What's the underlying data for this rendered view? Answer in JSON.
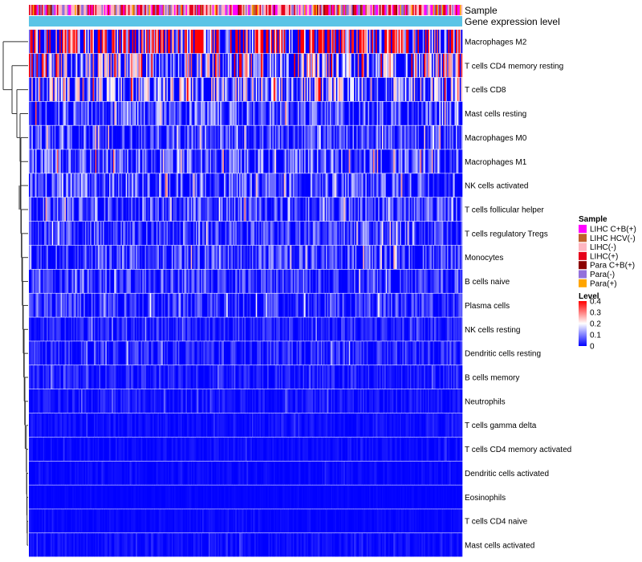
{
  "chart_data": {
    "type": "heatmap",
    "title": "",
    "xlabel": "",
    "ylabel": "",
    "annotation_tracks": [
      "Sample",
      "Gene expression level"
    ],
    "rows": [
      {
        "name": "Macrophages M2",
        "mean": 0.27
      },
      {
        "name": "T cells CD4 memory resting",
        "mean": 0.16
      },
      {
        "name": "T cells CD8",
        "mean": 0.13
      },
      {
        "name": "Mast cells resting",
        "mean": 0.075
      },
      {
        "name": "Macrophages M0",
        "mean": 0.06
      },
      {
        "name": "Macrophages M1",
        "mean": 0.075
      },
      {
        "name": "NK cells activated",
        "mean": 0.07
      },
      {
        "name": "T cells follicular helper",
        "mean": 0.065
      },
      {
        "name": "T cells regulatory  Tregs",
        "mean": 0.055
      },
      {
        "name": "Monocytes",
        "mean": 0.06
      },
      {
        "name": "B cells naive",
        "mean": 0.05
      },
      {
        "name": "Plasma cells",
        "mean": 0.045
      },
      {
        "name": "NK cells resting",
        "mean": 0.03
      },
      {
        "name": "Dendritic cells resting",
        "mean": 0.035
      },
      {
        "name": "B cells memory",
        "mean": 0.025
      },
      {
        "name": "Neutrophils",
        "mean": 0.02
      },
      {
        "name": "T cells gamma delta",
        "mean": 0.012
      },
      {
        "name": "T cells CD4 memory activated",
        "mean": 0.01
      },
      {
        "name": "Dendritic cells activated",
        "mean": 0.008
      },
      {
        "name": "Eosinophils",
        "mean": 0.003
      },
      {
        "name": "T cells CD4 naive",
        "mean": 0.006
      },
      {
        "name": "Mast cells activated",
        "mean": 0.012
      }
    ],
    "sample_legend": {
      "title": "Sample",
      "items": [
        {
          "label": "LIHC C+B(+)",
          "color": "#ff00ff"
        },
        {
          "label": "LIHC HCV(-)",
          "color": "#c0612b"
        },
        {
          "label": "LIHC(-)",
          "color": "#ffb6c1"
        },
        {
          "label": "LIHC(+)",
          "color": "#e6001a"
        },
        {
          "label": "Para C+B(+)",
          "color": "#8b0000"
        },
        {
          "label": "Para(-)",
          "color": "#9370db"
        },
        {
          "label": "Para(+)",
          "color": "#ffa500"
        }
      ]
    },
    "level_legend": {
      "title": "Level",
      "ticks": [
        "0.4",
        "0.3",
        "0.2",
        "0.1",
        "0"
      ],
      "tick_values": [
        0.4,
        0.3,
        0.2,
        0.1,
        0
      ],
      "range": [
        0,
        0.4
      ],
      "colors": {
        "low": "#0000ff",
        "mid": "#ffffff",
        "high": "#ff0000"
      }
    },
    "expression_track_color": "#5bc4e6",
    "column_count": 340
  }
}
